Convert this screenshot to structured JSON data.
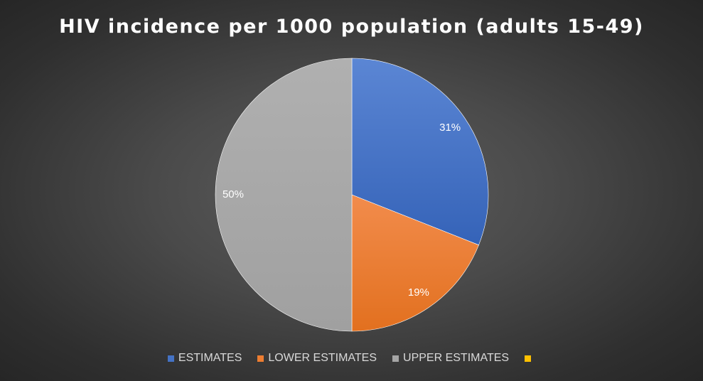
{
  "chart_data": {
    "type": "pie",
    "title": "HIV incidence per 1000 population (adults 15-49)",
    "slices": [
      {
        "label": "ESTIMATES",
        "percent": 31,
        "display": "31%",
        "color": "#4472c4",
        "labelColor": "#ffffff"
      },
      {
        "label": "LOWER ESTIMATES",
        "percent": 19,
        "display": "19%",
        "color": "#ed7d31",
        "labelColor": "#ffffff"
      },
      {
        "label": "UPPER ESTIMATES",
        "percent": 50,
        "display": "50%",
        "color": "#a5a5a5",
        "labelColor": "#ffffff"
      },
      {
        "label": "",
        "percent": 0,
        "display": "",
        "color": "#ffc000",
        "labelColor": "#ffffff"
      }
    ],
    "legend_position": "bottom",
    "start_angle_deg": 0,
    "direction": "clockwise"
  }
}
